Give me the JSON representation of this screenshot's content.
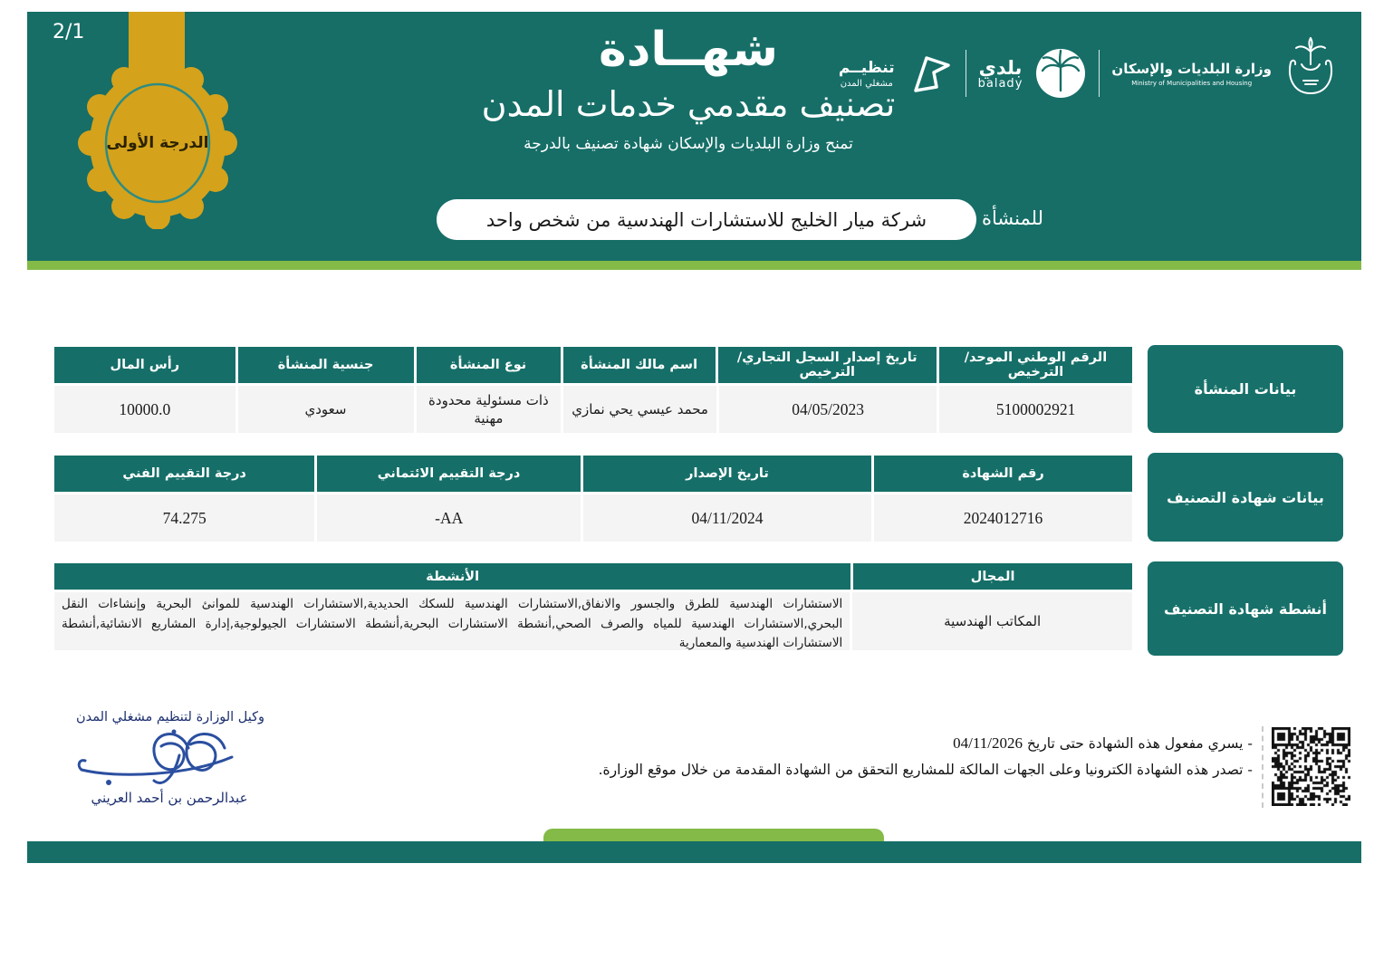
{
  "page_number": "2/1",
  "header": {
    "title": "شهــادة",
    "subtitle": "تصنيف مقدمي خدمات المدن",
    "tagline": "تمنح وزارة البلديات والإسكان شهادة تصنيف بالدرجة",
    "badge_text": "الدرجة الأولى",
    "entity_label": "للمنشأة",
    "entity_name": "شركة ميار الخليج للاستشارات الهندسية من شخص واحد"
  },
  "logos": {
    "tanzeem_title": "تنظيــم",
    "tanzeem_sub": "مشغلي المدن",
    "balady_ar": "بلدي",
    "balady_en": "balady",
    "ministry_ar": "وزارة البلديات والإسكان",
    "ministry_en": "Ministry of Municipalities and Housing"
  },
  "establishment": {
    "section_label": "بيانات المنشأة",
    "columns": [
      "الرقم الوطني الموحد/ الترخيص",
      "تاريخ إصدار السجل التجاري/ الترخيص",
      "اسم مالك المنشأة",
      "نوع المنشأة",
      "جنسية المنشأة",
      "رأس المال"
    ],
    "values": [
      "5100002921",
      "04/05/2023",
      "محمد عيسي يحي نمازي",
      "ذات مسئولية محدودة مهنية",
      "سعودي",
      "10000.0"
    ]
  },
  "certificate": {
    "section_label": "بيانات شهادة التصنيف",
    "columns": [
      "رقم الشهادة",
      "تاريخ الإصدار",
      "درجة التقييم الائتماني",
      "درجة التقييم الفني"
    ],
    "values": [
      "2024012716",
      "04/11/2024",
      "AA-",
      "74.275"
    ]
  },
  "activities": {
    "section_label": "أنشطة شهادة التصنيف",
    "columns": [
      "المجال",
      "الأنشطة"
    ],
    "field_value": "المكاتب الهندسية",
    "activities_value": "الاستشارات الهندسية للطرق والجسور والانفاق,الاستشارات الهندسية للسكك الحديدية,الاستشارات الهندسية للموانئ البحرية وإنشاءات النقل البحري,الاستشارات الهندسية للمياه والصرف الصحي,أنشطة الاستشارات البحرية,أنشطة الاستشارات الجيولوجية,إدارة المشاريع الانشائية,أنشطة الاستشارات الهندسية والمعمارية"
  },
  "signature": {
    "title": "وكيل الوزارة لتنظيم مشغلي المدن",
    "name": "عبدالرحمن بن أحمد العريني"
  },
  "notes": {
    "valid_until_label": "- يسري مفعول هذه الشهادة حتى تاريخ",
    "valid_until_date": "04/11/2026",
    "electronic": "- تصدر هذه الشهادة الكترونيا وعلى الجهات المالكة للمشاريع التحقق من الشهادة المقدمة من خلال موقع الوزارة."
  },
  "colors": {
    "teal": "#166e67",
    "green": "#84ba47",
    "gold": "#d5a21b",
    "signature_blue": "#2b4fa0"
  }
}
